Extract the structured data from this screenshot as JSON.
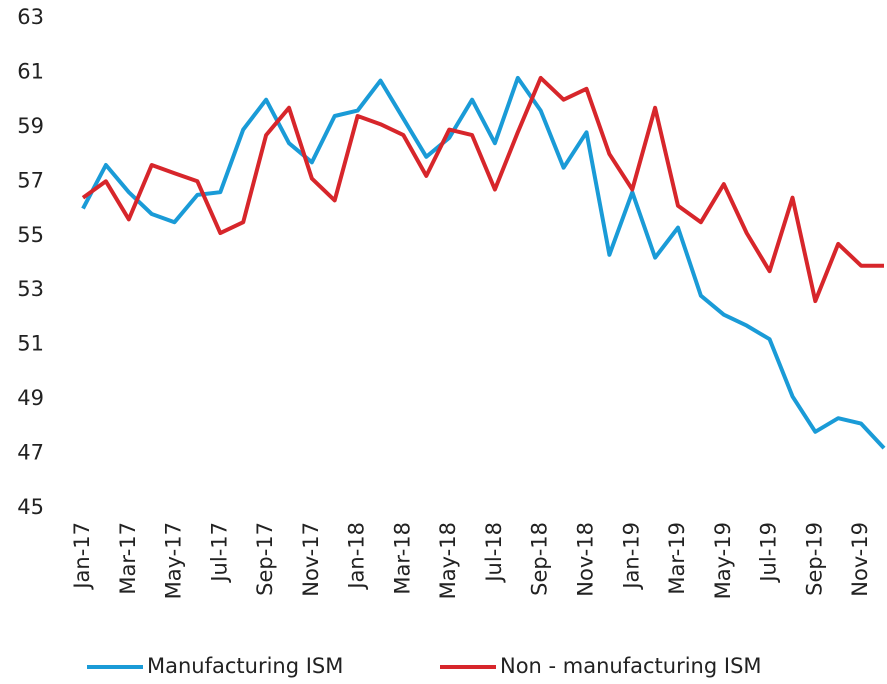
{
  "chart_data": {
    "type": "line",
    "categories": [
      "Jan-17",
      null,
      "Mar-17",
      null,
      "May-17",
      null,
      "Jul-17",
      null,
      "Sep-17",
      null,
      "Nov-17",
      null,
      "Jan-18",
      null,
      "Mar-18",
      null,
      "May-18",
      null,
      "Jul-18",
      null,
      "Sep-18",
      null,
      "Nov-18",
      null,
      "Jan-19",
      null,
      "Mar-19",
      null,
      "May-19",
      null,
      "Jul-19",
      null,
      "Sep-19",
      null,
      "Nov-19",
      null
    ],
    "series": [
      {
        "name": "Manufacturing ISM",
        "color": "#1a9bd7",
        "values": [
          56.0,
          57.6,
          56.6,
          55.8,
          55.5,
          56.5,
          56.6,
          58.9,
          60.0,
          58.4,
          57.7,
          59.4,
          59.6,
          60.7,
          59.3,
          57.9,
          58.6,
          60.0,
          58.4,
          60.8,
          59.6,
          57.5,
          58.8,
          54.3,
          56.6,
          54.2,
          55.3,
          52.8,
          52.1,
          51.7,
          51.2,
          49.1,
          47.8,
          48.3,
          48.1,
          47.2
        ]
      },
      {
        "name": "Non - manufacturing ISM",
        "color": "#d7262b",
        "values": [
          56.4,
          57.0,
          55.6,
          57.6,
          57.3,
          57.0,
          55.1,
          55.5,
          58.7,
          59.7,
          57.1,
          56.3,
          59.4,
          59.1,
          58.7,
          57.2,
          58.9,
          58.7,
          56.7,
          58.8,
          60.8,
          60.0,
          60.4,
          58.0,
          56.7,
          59.7,
          56.1,
          55.5,
          56.9,
          55.1,
          53.7,
          56.4,
          52.6,
          54.7,
          53.9,
          53.9
        ]
      }
    ],
    "ylim": [
      45,
      63
    ],
    "yticks": [
      45,
      47,
      49,
      51,
      53,
      55,
      57,
      59,
      61,
      63
    ],
    "grid": false,
    "legend": "bottom"
  }
}
